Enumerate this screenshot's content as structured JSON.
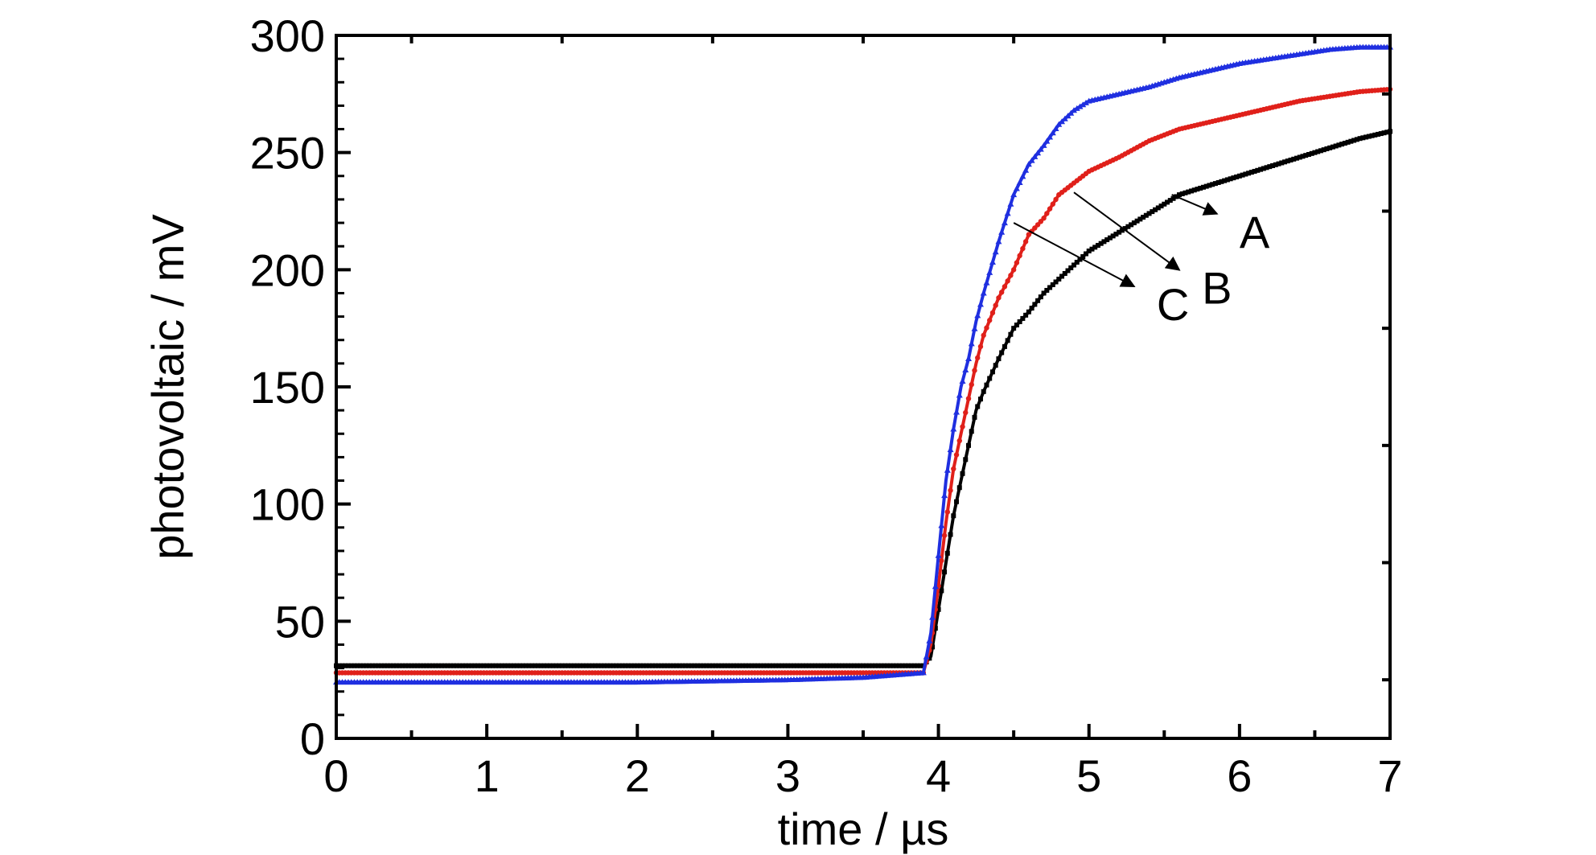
{
  "chart_data": {
    "type": "line",
    "title": "",
    "xlabel": "time / µs",
    "ylabel": "photovoltaic / mV",
    "xlim": [
      0,
      7
    ],
    "ylim": [
      0,
      300
    ],
    "xticks": [
      "0",
      "1",
      "2",
      "3",
      "4",
      "5",
      "6",
      "7"
    ],
    "yticks": [
      "0",
      "50",
      "100",
      "150",
      "200",
      "250",
      "300"
    ],
    "grid": false,
    "legend": "none",
    "series": [
      {
        "name": "A",
        "color": "#000000",
        "marker": "square",
        "x": [
          0,
          1,
          2,
          3,
          3.5,
          3.9,
          3.95,
          4.0,
          4.05,
          4.1,
          4.15,
          4.2,
          4.25,
          4.3,
          4.4,
          4.5,
          4.6,
          4.7,
          4.8,
          4.9,
          5.0,
          5.2,
          5.4,
          5.6,
          5.8,
          6.0,
          6.2,
          6.4,
          6.6,
          6.8,
          7.0
        ],
        "y": [
          31,
          31,
          31,
          31,
          31,
          31,
          35,
          55,
          75,
          95,
          110,
          125,
          140,
          148,
          162,
          175,
          182,
          190,
          196,
          202,
          208,
          216,
          224,
          232,
          236,
          240,
          244,
          248,
          252,
          256,
          259
        ]
      },
      {
        "name": "B",
        "color": "#e0201a",
        "marker": "circle",
        "x": [
          0,
          1,
          2,
          3,
          3.5,
          3.9,
          3.95,
          4.0,
          4.05,
          4.1,
          4.15,
          4.2,
          4.25,
          4.3,
          4.4,
          4.5,
          4.6,
          4.7,
          4.8,
          4.9,
          5.0,
          5.2,
          5.4,
          5.6,
          5.8,
          6.0,
          6.2,
          6.4,
          6.6,
          6.8,
          7.0
        ],
        "y": [
          28,
          28,
          28,
          28,
          28,
          28,
          40,
          65,
          92,
          115,
          130,
          145,
          160,
          172,
          188,
          200,
          215,
          222,
          232,
          237,
          242,
          248,
          255,
          260,
          263,
          266,
          269,
          272,
          274,
          276,
          277
        ]
      },
      {
        "name": "C",
        "color": "#1f2fe0",
        "marker": "triangle",
        "x": [
          0,
          1,
          2,
          3,
          3.5,
          3.9,
          3.95,
          4.0,
          4.05,
          4.1,
          4.15,
          4.2,
          4.25,
          4.3,
          4.4,
          4.5,
          4.6,
          4.7,
          4.8,
          4.9,
          5.0,
          5.2,
          5.4,
          5.6,
          5.8,
          6.0,
          6.2,
          6.4,
          6.6,
          6.8,
          7.0
        ],
        "y": [
          24,
          24,
          24,
          25,
          26,
          28,
          45,
          78,
          110,
          132,
          150,
          162,
          178,
          190,
          212,
          232,
          245,
          253,
          262,
          268,
          272,
          275,
          278,
          282,
          285,
          288,
          290,
          292,
          294,
          295,
          295
        ]
      }
    ],
    "annotations": [
      {
        "label": "A",
        "arrow_from": [
          5.55,
          232
        ],
        "text_at": [
          6.0,
          217
        ]
      },
      {
        "label": "B",
        "arrow_from": [
          4.9,
          233
        ],
        "text_at": [
          5.75,
          193
        ]
      },
      {
        "label": "C",
        "arrow_from": [
          4.5,
          220
        ],
        "text_at": [
          5.45,
          186
        ]
      }
    ]
  }
}
